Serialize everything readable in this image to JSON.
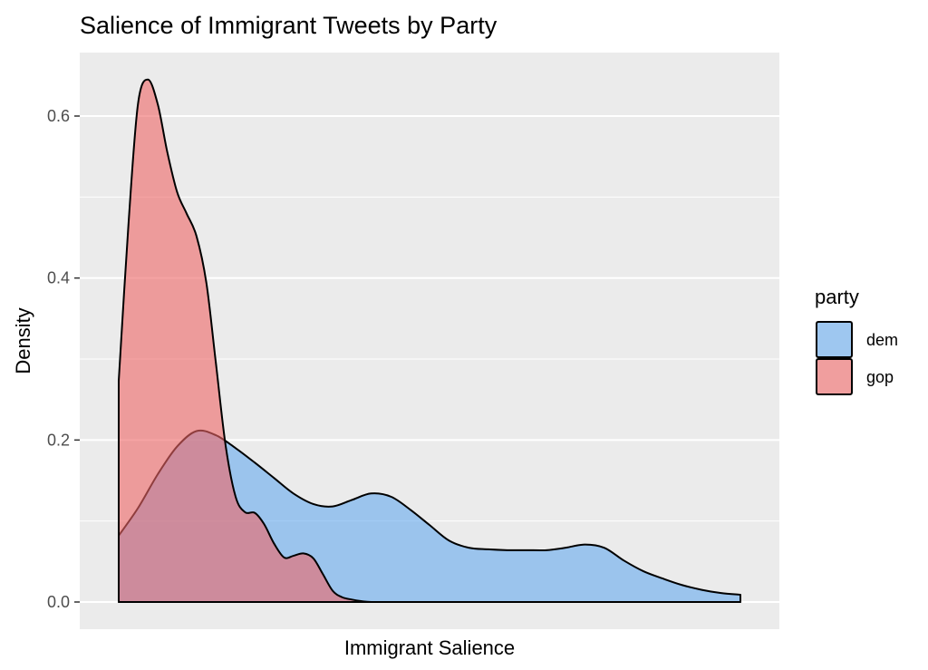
{
  "chart_data": {
    "type": "area",
    "subtype": "density",
    "title": "Salience of Immigrant Tweets by Party",
    "xlabel": "Immigrant Salience",
    "ylabel": "Density",
    "xlim": [
      0,
      1
    ],
    "ylim": [
      -0.017,
      0.677
    ],
    "x_ticks_shown": false,
    "y_ticks": [
      0.0,
      0.2,
      0.4,
      0.6
    ],
    "y_tick_labels": [
      "0.0",
      "0.2",
      "0.4",
      "0.6"
    ],
    "grid": true,
    "legend": {
      "title": "party",
      "position": "right",
      "entries": [
        "dem",
        "gop"
      ]
    },
    "colors": {
      "panel_bg": "#ebebeb",
      "grid": "#ffffff",
      "dem": "#66aaee",
      "gop": "#ee6666",
      "outline": "#000000"
    },
    "fill_opacity": 0.6,
    "series": [
      {
        "name": "dem",
        "x": [
          0.0,
          0.031,
          0.063,
          0.094,
          0.125,
          0.156,
          0.188,
          0.219,
          0.25,
          0.281,
          0.313,
          0.344,
          0.375,
          0.406,
          0.438,
          0.469,
          0.5,
          0.531,
          0.563,
          0.594,
          0.625,
          0.656,
          0.688,
          0.719,
          0.75,
          0.781,
          0.813,
          0.844,
          0.875,
          0.906,
          0.938,
          0.969,
          1.0
        ],
        "values": [
          0.082,
          0.116,
          0.158,
          0.192,
          0.211,
          0.206,
          0.19,
          0.172,
          0.153,
          0.134,
          0.121,
          0.118,
          0.126,
          0.134,
          0.13,
          0.114,
          0.095,
          0.076,
          0.067,
          0.065,
          0.064,
          0.064,
          0.064,
          0.067,
          0.071,
          0.067,
          0.051,
          0.038,
          0.029,
          0.021,
          0.015,
          0.011,
          0.009
        ]
      },
      {
        "name": "gop",
        "x": [
          0.0,
          0.016,
          0.031,
          0.047,
          0.063,
          0.078,
          0.094,
          0.109,
          0.125,
          0.141,
          0.156,
          0.172,
          0.188,
          0.203,
          0.219,
          0.234,
          0.25,
          0.266,
          0.281,
          0.297,
          0.313,
          0.328,
          0.344,
          0.359,
          0.375,
          0.391,
          0.406,
          0.438,
          0.5,
          0.625,
          0.75,
          0.875,
          1.0
        ],
        "values": [
          0.273,
          0.47,
          0.615,
          0.645,
          0.614,
          0.556,
          0.506,
          0.48,
          0.452,
          0.394,
          0.297,
          0.193,
          0.13,
          0.111,
          0.11,
          0.096,
          0.072,
          0.055,
          0.057,
          0.06,
          0.054,
          0.035,
          0.014,
          0.006,
          0.003,
          0.001,
          0.0,
          0.0,
          0.0,
          0.0,
          0.0,
          0.0,
          0.0
        ]
      }
    ]
  }
}
